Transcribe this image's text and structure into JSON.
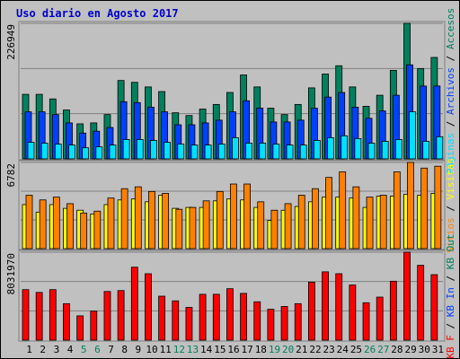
{
  "title": "Uso diario en Agosto 2017",
  "chart_data": [
    {
      "type": "bar",
      "ylim": [
        0,
        226949
      ],
      "yticks": [
        226949
      ],
      "separator": " / ",
      "series": [
        {
          "name": "Accesos",
          "color": "#00805c",
          "values": [
            108080,
            108080,
            100360,
            81832,
            58672,
            60216,
            74112,
            131240,
            128152,
            120432,
            112712,
            77200,
            72568,
            83376,
            91096,
            111168,
            140504,
            120432,
            84920,
            74112,
            91096,
            118888,
            142048,
            155944,
            120432,
            88008,
            106536,
            148224,
            226949,
            151312,
            169840
          ]
        },
        {
          "name": "Archivos",
          "color": "#0040ff",
          "values": [
            78744,
            78744,
            74112,
            60216,
            43232,
            46320,
            52496,
            95728,
            94184,
            86464,
            78744,
            57128,
            57128,
            60216,
            64848,
            78744,
            97272,
            84920,
            61760,
            61760,
            64848,
            84920,
            103448,
            111168,
            86464,
            67936,
            80288,
            106536,
            157488,
            121976,
            121976
          ]
        },
        {
          "name": "Páginas",
          "color": "#00e0ff",
          "values": [
            27792,
            26248,
            24704,
            23160,
            18528,
            20072,
            23160,
            32424,
            32424,
            30880,
            27792,
            24704,
            23160,
            23160,
            24704,
            35512,
            26248,
            26248,
            24704,
            23160,
            23160,
            30880,
            35512,
            38600,
            33968,
            26248,
            29336,
            32424,
            78744,
            29336,
            37056
          ]
        }
      ]
    },
    {
      "type": "bar",
      "ylim": [
        0,
        6782
      ],
      "yticks": [
        6782
      ],
      "separator": " / ",
      "series": [
        {
          "name": "Visitas",
          "color": "#ffff00",
          "values": [
            3464,
            2874,
            3464,
            3169,
            3022,
            2727,
            3464,
            3832,
            3906,
            3685,
            4201,
            3169,
            3243,
            3243,
            3759,
            3906,
            3832,
            3243,
            2211,
            3022,
            3317,
            3685,
            4054,
            4054,
            3980,
            3243,
            4127,
            4127,
            4275,
            4201,
            4348
          ]
        },
        {
          "name": "Sitios",
          "color": "#ff8000",
          "values": [
            4201,
            3832,
            4054,
            3538,
            2801,
            2948,
            3980,
            4717,
            4864,
            4496,
            4348,
            3095,
            3243,
            3759,
            4496,
            5085,
            5085,
            3685,
            3022,
            3538,
            4201,
            4717,
            5601,
            6043,
            4864,
            4054,
            4201,
            6043,
            6782,
            6338,
            6486
          ]
        }
      ]
    },
    {
      "type": "bar",
      "ylim": [
        0,
        8031970
      ],
      "yticks": [
        8031970
      ],
      "separator": " / ",
      "series": [
        {
          "name": "KB F",
          "color": "#ff0000",
          "values": [
            4614138,
            4357797,
            4614138,
            3332433,
            2221622,
            2648857,
            4443244,
            4528691,
            6664866,
            6066737,
            4016009,
            3588774,
            2990645,
            4186903,
            4186903,
            4699585,
            4272350,
            3503327,
            2819751,
            3076092,
            3332433,
            5297714,
            6237631,
            6066737,
            5041373,
            3417880,
            3930562,
            5383161,
            8031970,
            6835760,
            5981290
          ]
        }
      ],
      "legend_extra": [
        {
          "name": "KB In",
          "color": "#0040ff"
        },
        {
          "name": "KB Out",
          "color": "#00805c"
        }
      ],
      "categories": [
        "1",
        "2",
        "3",
        "4",
        "5",
        "6",
        "7",
        "8",
        "9",
        "10",
        "11",
        "12",
        "13",
        "14",
        "15",
        "16",
        "17",
        "18",
        "19",
        "20",
        "21",
        "22",
        "23",
        "24",
        "25",
        "26",
        "27",
        "28",
        "29",
        "30",
        "31"
      ],
      "weekend": [
        false,
        false,
        false,
        false,
        true,
        true,
        false,
        false,
        false,
        false,
        false,
        true,
        true,
        false,
        false,
        false,
        false,
        false,
        true,
        true,
        false,
        false,
        false,
        false,
        false,
        true,
        true,
        false,
        false,
        false,
        false
      ]
    }
  ]
}
